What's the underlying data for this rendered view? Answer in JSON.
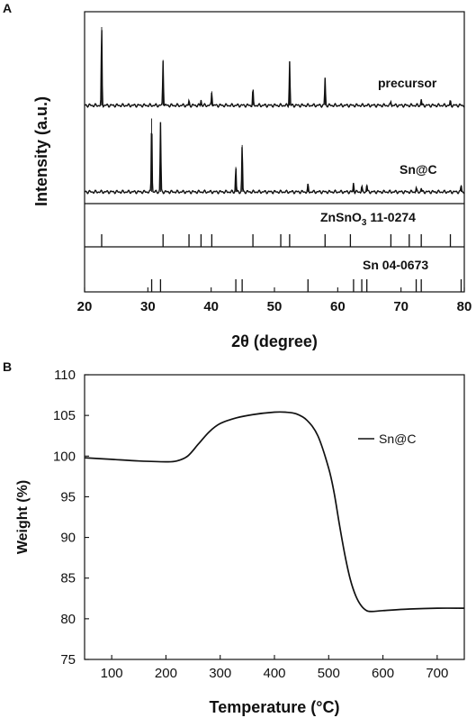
{
  "chart_data": [
    {
      "panel_label": "A",
      "type": "line",
      "xlabel": "2θ (degree)",
      "ylabel": "Intensity (a.u.)",
      "xlim": [
        20,
        80
      ],
      "x_ticks": [
        20,
        30,
        40,
        50,
        60,
        70,
        80
      ],
      "series": [
        {
          "name": "precursor",
          "peaks": [
            {
              "x": 22.7,
              "y": 1.0
            },
            {
              "x": 32.4,
              "y": 0.58
            },
            {
              "x": 36.5,
              "y": 0.05
            },
            {
              "x": 38.4,
              "y": 0.07
            },
            {
              "x": 40.1,
              "y": 0.18
            },
            {
              "x": 46.6,
              "y": 0.2
            },
            {
              "x": 52.4,
              "y": 0.56
            },
            {
              "x": 58.0,
              "y": 0.35
            },
            {
              "x": 68.4,
              "y": 0.05
            },
            {
              "x": 73.2,
              "y": 0.08
            },
            {
              "x": 77.8,
              "y": 0.05
            }
          ]
        },
        {
          "name": "Sn@C",
          "peaks": [
            {
              "x": 30.6,
              "y": 0.97
            },
            {
              "x": 32.0,
              "y": 0.92
            },
            {
              "x": 43.9,
              "y": 0.33
            },
            {
              "x": 44.9,
              "y": 0.62
            },
            {
              "x": 55.3,
              "y": 0.09
            },
            {
              "x": 62.5,
              "y": 0.12
            },
            {
              "x": 63.8,
              "y": 0.07
            },
            {
              "x": 64.6,
              "y": 0.1
            },
            {
              "x": 72.4,
              "y": 0.05
            },
            {
              "x": 73.2,
              "y": 0.05
            },
            {
              "x": 79.5,
              "y": 0.09
            }
          ]
        }
      ],
      "references": [
        {
          "label_main": "ZnSnO",
          "label_sub": "3",
          "label_rest": " 11-0274",
          "lines": [
            22.7,
            32.4,
            36.5,
            38.4,
            40.1,
            46.6,
            51.0,
            52.4,
            58.0,
            62.0,
            68.4,
            71.3,
            73.2,
            77.8
          ]
        },
        {
          "label_main": "Sn 04-0673",
          "label_sub": "",
          "label_rest": "",
          "lines": [
            30.6,
            32.0,
            43.9,
            44.9,
            55.3,
            62.5,
            63.8,
            64.6,
            72.4,
            73.2,
            79.5
          ]
        }
      ]
    },
    {
      "panel_label": "B",
      "type": "line",
      "xlabel": "Temperature (°C)",
      "ylabel": "Weight (%)",
      "xlim": [
        50,
        750
      ],
      "ylim": [
        75,
        110
      ],
      "x_ticks": [
        100,
        200,
        300,
        400,
        500,
        600,
        700
      ],
      "y_ticks": [
        75,
        80,
        85,
        90,
        95,
        100,
        105,
        110
      ],
      "legend_position": "top-right",
      "series": [
        {
          "name": "Sn@C",
          "x": [
            50,
            100,
            150,
            200,
            220,
            240,
            260,
            280,
            300,
            330,
            360,
            400,
            420,
            440,
            460,
            480,
            500,
            510,
            520,
            530,
            540,
            550,
            560,
            570,
            580,
            600,
            650,
            700,
            750
          ],
          "y": [
            99.8,
            99.6,
            99.4,
            99.3,
            99.4,
            100.0,
            101.5,
            103.0,
            104.0,
            104.7,
            105.1,
            105.4,
            105.4,
            105.2,
            104.4,
            102.5,
            98.5,
            95.5,
            91.5,
            87.8,
            84.8,
            82.8,
            81.6,
            81.0,
            80.9,
            81.0,
            81.2,
            81.3,
            81.3
          ]
        }
      ]
    }
  ]
}
